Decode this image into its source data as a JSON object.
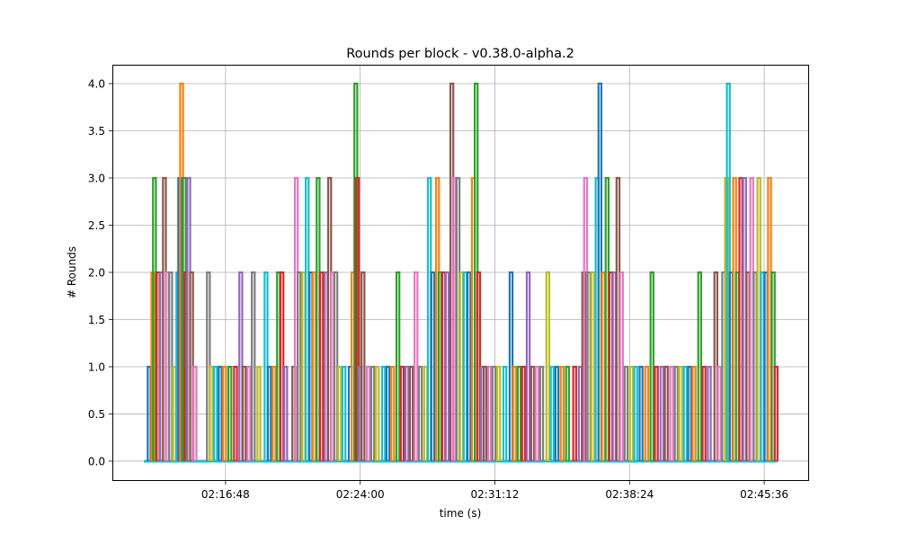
{
  "chart_data": {
    "type": "line",
    "title": "Rounds per block  -  v0.38.0-alpha.2",
    "xlabel": "time (s)",
    "ylabel": "# Rounds",
    "xlim": [
      "02:10:45",
      "02:48:00"
    ],
    "ylim": [
      -0.21,
      4.2
    ],
    "xticks": [
      "02:16:48",
      "02:24:00",
      "02:31:12",
      "02:38:24",
      "02:45:36"
    ],
    "yticks": [
      "0.0",
      "0.5",
      "1.0",
      "1.5",
      "2.0",
      "2.5",
      "3.0",
      "3.5",
      "4.0"
    ],
    "grid": true,
    "baseline": {
      "start": "02:12:26",
      "end": "02:46:19",
      "value": 0
    },
    "colors": [
      "#1f77b4",
      "#ff7f0e",
      "#2ca02c",
      "#d62728",
      "#9467bd",
      "#8c564b",
      "#e377c2",
      "#7f7f7f",
      "#bcbd22",
      "#17becf"
    ],
    "spikes": [
      [
        "02:12:43",
        1
      ],
      [
        "02:12:55",
        2
      ],
      [
        "02:13:00",
        3
      ],
      [
        "02:13:12",
        2
      ],
      [
        "02:13:23",
        2
      ],
      [
        "02:13:32",
        3
      ],
      [
        "02:13:41",
        2
      ],
      [
        "02:13:52",
        2
      ],
      [
        "02:14:04",
        1
      ],
      [
        "02:14:15",
        2
      ],
      [
        "02:14:21",
        3
      ],
      [
        "02:14:27",
        4
      ],
      [
        "02:14:36",
        3
      ],
      [
        "02:14:41",
        2
      ],
      [
        "02:14:50",
        3
      ],
      [
        "02:14:59",
        2
      ],
      [
        "02:15:10",
        1
      ],
      [
        "02:15:53",
        2
      ],
      [
        "02:16:02",
        1
      ],
      [
        "02:16:16",
        1
      ],
      [
        "02:16:31",
        1
      ],
      [
        "02:16:45",
        1
      ],
      [
        "02:17:02",
        1
      ],
      [
        "02:17:20",
        1
      ],
      [
        "02:17:37",
        2
      ],
      [
        "02:17:48",
        1
      ],
      [
        "02:18:03",
        1
      ],
      [
        "02:18:17",
        2
      ],
      [
        "02:18:35",
        1
      ],
      [
        "02:18:58",
        2
      ],
      [
        "02:19:09",
        1
      ],
      [
        "02:19:24",
        1
      ],
      [
        "02:19:38",
        2
      ],
      [
        "02:19:49",
        2
      ],
      [
        "02:20:01",
        1
      ],
      [
        "02:20:27",
        1
      ],
      [
        "02:20:35",
        3
      ],
      [
        "02:20:44",
        2
      ],
      [
        "02:20:59",
        2
      ],
      [
        "02:21:10",
        3
      ],
      [
        "02:21:22",
        2
      ],
      [
        "02:21:33",
        2
      ],
      [
        "02:21:45",
        3
      ],
      [
        "02:21:56",
        2
      ],
      [
        "02:22:11",
        2
      ],
      [
        "02:22:22",
        3
      ],
      [
        "02:22:31",
        2
      ],
      [
        "02:22:42",
        2
      ],
      [
        "02:22:54",
        1
      ],
      [
        "02:23:08",
        1
      ],
      [
        "02:23:28",
        1
      ],
      [
        "02:23:37",
        2
      ],
      [
        "02:23:46",
        4
      ],
      [
        "02:23:51",
        3
      ],
      [
        "02:24:00",
        1
      ],
      [
        "02:24:09",
        2
      ],
      [
        "02:24:26",
        1
      ],
      [
        "02:24:40",
        1
      ],
      [
        "02:24:55",
        1
      ],
      [
        "02:25:15",
        1
      ],
      [
        "02:25:29",
        1
      ],
      [
        "02:25:44",
        1
      ],
      [
        "02:26:01",
        2
      ],
      [
        "02:26:15",
        1
      ],
      [
        "02:26:30",
        1
      ],
      [
        "02:26:44",
        1
      ],
      [
        "02:26:59",
        2
      ],
      [
        "02:27:13",
        1
      ],
      [
        "02:27:30",
        1
      ],
      [
        "02:27:42",
        3
      ],
      [
        "02:27:53",
        2
      ],
      [
        "02:28:08",
        3
      ],
      [
        "02:28:16",
        2
      ],
      [
        "02:28:28",
        2
      ],
      [
        "02:28:39",
        2
      ],
      [
        "02:28:54",
        4
      ],
      [
        "02:29:02",
        3
      ],
      [
        "02:29:14",
        3
      ],
      [
        "02:29:25",
        2
      ],
      [
        "02:29:37",
        2
      ],
      [
        "02:29:49",
        2
      ],
      [
        "02:30:03",
        3
      ],
      [
        "02:30:12",
        4
      ],
      [
        "02:30:20",
        2
      ],
      [
        "02:30:32",
        1
      ],
      [
        "02:30:40",
        1
      ],
      [
        "02:30:55",
        1
      ],
      [
        "02:31:09",
        1
      ],
      [
        "02:31:24",
        1
      ],
      [
        "02:31:44",
        1
      ],
      [
        "02:32:04",
        2
      ],
      [
        "02:32:15",
        1
      ],
      [
        "02:32:30",
        1
      ],
      [
        "02:32:44",
        1
      ],
      [
        "02:32:59",
        2
      ],
      [
        "02:33:13",
        1
      ],
      [
        "02:33:27",
        1
      ],
      [
        "02:33:42",
        1
      ],
      [
        "02:34:02",
        2
      ],
      [
        "02:34:16",
        1
      ],
      [
        "02:34:31",
        1
      ],
      [
        "02:34:48",
        1
      ],
      [
        "02:35:05",
        1
      ],
      [
        "02:35:28",
        1
      ],
      [
        "02:35:46",
        1
      ],
      [
        "02:35:57",
        2
      ],
      [
        "02:36:03",
        3
      ],
      [
        "02:36:14",
        2
      ],
      [
        "02:36:26",
        2
      ],
      [
        "02:36:40",
        3
      ],
      [
        "02:36:49",
        4
      ],
      [
        "02:37:00",
        2
      ],
      [
        "02:37:12",
        3
      ],
      [
        "02:37:24",
        2
      ],
      [
        "02:37:35",
        2
      ],
      [
        "02:37:47",
        3
      ],
      [
        "02:37:58",
        2
      ],
      [
        "02:38:13",
        1
      ],
      [
        "02:38:30",
        1
      ],
      [
        "02:38:44",
        1
      ],
      [
        "02:39:01",
        1
      ],
      [
        "02:39:19",
        1
      ],
      [
        "02:39:36",
        2
      ],
      [
        "02:39:50",
        1
      ],
      [
        "02:40:08",
        1
      ],
      [
        "02:40:22",
        1
      ],
      [
        "02:40:39",
        1
      ],
      [
        "02:40:54",
        1
      ],
      [
        "02:41:08",
        1
      ],
      [
        "02:41:23",
        1
      ],
      [
        "02:41:37",
        1
      ],
      [
        "02:41:51",
        1
      ],
      [
        "02:42:09",
        2
      ],
      [
        "02:42:23",
        1
      ],
      [
        "02:42:40",
        1
      ],
      [
        "02:43:01",
        2
      ],
      [
        "02:43:12",
        1
      ],
      [
        "02:43:26",
        2
      ],
      [
        "02:43:35",
        3
      ],
      [
        "02:43:41",
        4
      ],
      [
        "02:43:50",
        2
      ],
      [
        "02:44:01",
        3
      ],
      [
        "02:44:10",
        2
      ],
      [
        "02:44:21",
        3
      ],
      [
        "02:44:33",
        3
      ],
      [
        "02:44:44",
        2
      ],
      [
        "02:44:56",
        3
      ],
      [
        "02:45:07",
        2
      ],
      [
        "02:45:19",
        3
      ],
      [
        "02:45:30",
        2
      ],
      [
        "02:45:42",
        2
      ],
      [
        "02:45:53",
        3
      ],
      [
        "02:46:05",
        2
      ],
      [
        "02:46:14",
        1
      ]
    ]
  }
}
